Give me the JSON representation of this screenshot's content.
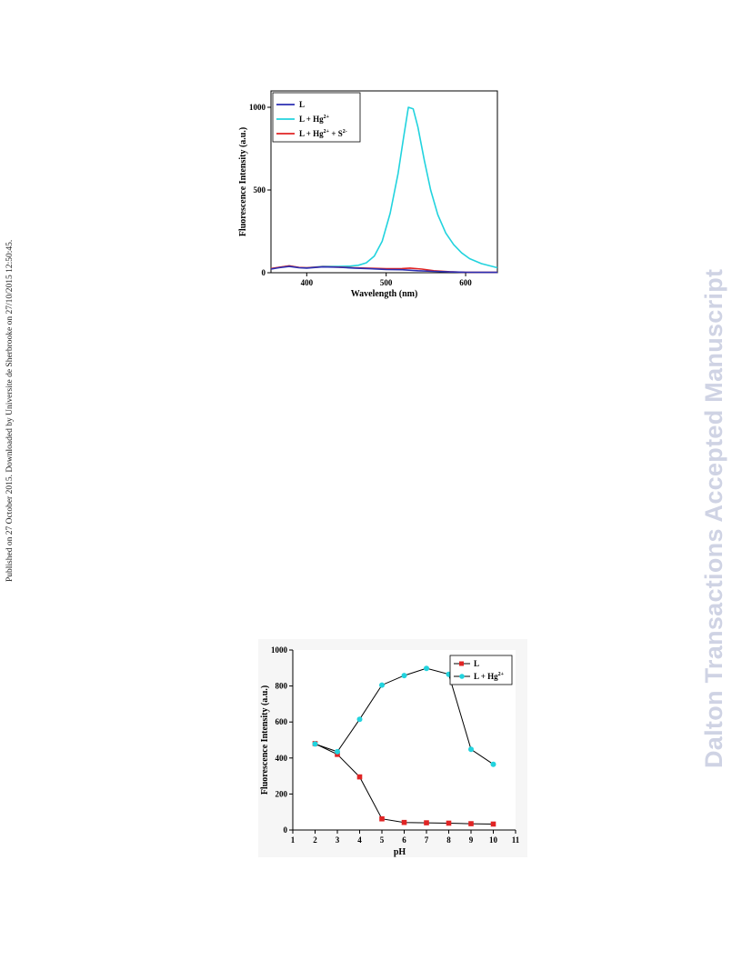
{
  "page": {
    "side_note": "Published on 27 October 2015. Downloaded by Universite de Sherbrooke on 27/10/2015 12:50:45.",
    "watermark": "Dalton Transactions Accepted Manuscript",
    "watermark_color": "#cfd3e4"
  },
  "chart_data": [
    {
      "type": "line",
      "title": "",
      "xlabel": "Wavelength (nm)",
      "ylabel": "Fluorescence Intensity (a.u.)",
      "xlim": [
        355,
        640
      ],
      "ylim": [
        0,
        1000
      ],
      "xticks": [
        400,
        500,
        600
      ],
      "yticks": [
        0,
        500,
        1000
      ],
      "legend_position": "top-left",
      "series": [
        {
          "name": "L",
          "name_sup": "",
          "name_tail": "",
          "name_sup2": "",
          "color": "#2b2fb3",
          "x": [
            355,
            365,
            378,
            390,
            400,
            420,
            440,
            460,
            480,
            500,
            520,
            540,
            560,
            580,
            600,
            620,
            640
          ],
          "y": [
            22,
            30,
            38,
            30,
            28,
            35,
            33,
            28,
            24,
            20,
            18,
            12,
            8,
            5,
            3,
            2,
            2
          ]
        },
        {
          "name": "L + Hg",
          "name_sup": "2+",
          "name_tail": "",
          "name_sup2": "",
          "color": "#22d3de",
          "x": [
            355,
            365,
            378,
            390,
            400,
            420,
            440,
            455,
            465,
            475,
            485,
            495,
            505,
            515,
            522,
            528,
            534,
            540,
            548,
            556,
            565,
            575,
            585,
            595,
            605,
            620,
            640
          ],
          "y": [
            25,
            32,
            42,
            32,
            30,
            38,
            38,
            40,
            45,
            60,
            100,
            190,
            360,
            600,
            820,
            1000,
            990,
            880,
            680,
            500,
            350,
            240,
            170,
            120,
            85,
            55,
            30
          ]
        },
        {
          "name": "L + Hg",
          "name_sup": "2+",
          "name_tail": " + S",
          "name_sup2": "2-",
          "color": "#e02424",
          "x": [
            355,
            365,
            378,
            390,
            400,
            420,
            440,
            460,
            480,
            500,
            520,
            530,
            545,
            560,
            580,
            600,
            620,
            640
          ],
          "y": [
            25,
            33,
            42,
            32,
            30,
            36,
            34,
            30,
            27,
            24,
            25,
            28,
            22,
            12,
            6,
            3,
            2,
            2
          ]
        }
      ]
    },
    {
      "type": "line",
      "title": "",
      "xlabel": "pH",
      "ylabel": "Fluorescence Intensity (a.u.)",
      "xlim": [
        1,
        11
      ],
      "ylim": [
        0,
        1000
      ],
      "xticks": [
        1,
        2,
        3,
        4,
        5,
        6,
        7,
        8,
        9,
        10,
        11
      ],
      "yticks": [
        0,
        200,
        400,
        600,
        800,
        1000
      ],
      "legend_position": "top-right",
      "series": [
        {
          "name": "L",
          "name_sup": "",
          "color": "#e02424",
          "line_color": "#000000",
          "marker": "square",
          "x": [
            2,
            3,
            4,
            5,
            6,
            7,
            8,
            9,
            10
          ],
          "y": [
            480,
            420,
            295,
            62,
            42,
            40,
            38,
            35,
            33
          ]
        },
        {
          "name": "L + Hg",
          "name_sup": "2+",
          "color": "#22d3de",
          "line_color": "#000000",
          "marker": "circle",
          "x": [
            2,
            3,
            4,
            5,
            6,
            7,
            8,
            9,
            10
          ],
          "y": [
            478,
            435,
            615,
            805,
            858,
            898,
            865,
            448,
            365
          ]
        }
      ]
    }
  ]
}
